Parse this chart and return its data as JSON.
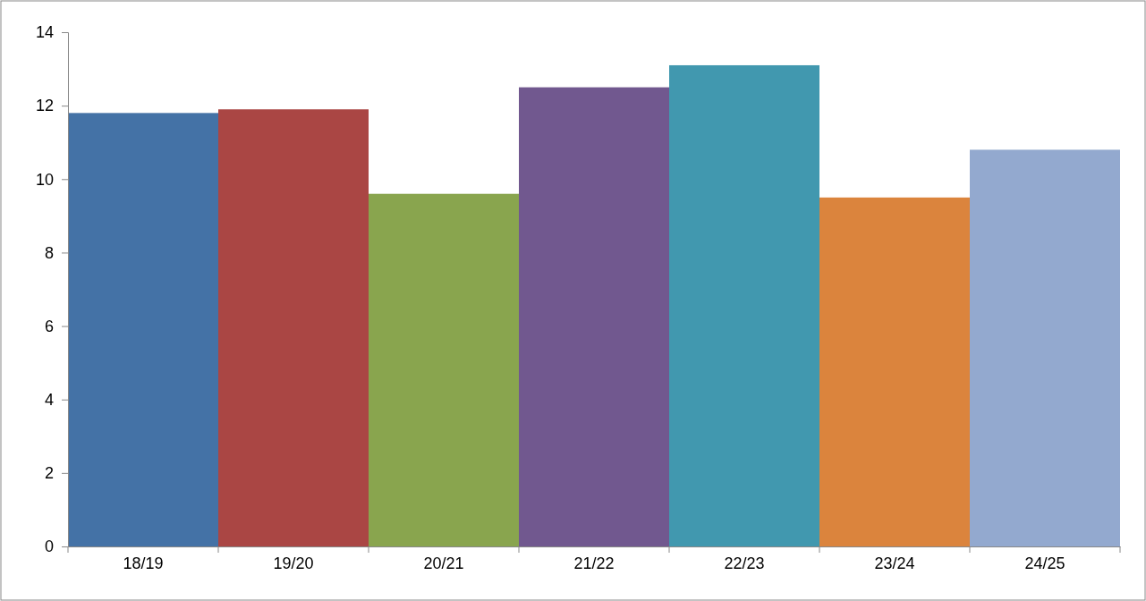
{
  "chart_data": {
    "type": "bar",
    "categories": [
      "18/19",
      "19/20",
      "20/21",
      "21/22",
      "22/23",
      "23/24",
      "24/25"
    ],
    "values": [
      11.8,
      11.9,
      9.6,
      12.5,
      13.1,
      9.5,
      10.8
    ],
    "colors": [
      "#4472a6",
      "#aa4644",
      "#89a54e",
      "#71588f",
      "#4198af",
      "#db843d",
      "#93a9cf"
    ],
    "ylim": [
      0,
      14
    ],
    "yticks": [
      0,
      2,
      4,
      6,
      8,
      10,
      12,
      14
    ],
    "grid": false
  }
}
